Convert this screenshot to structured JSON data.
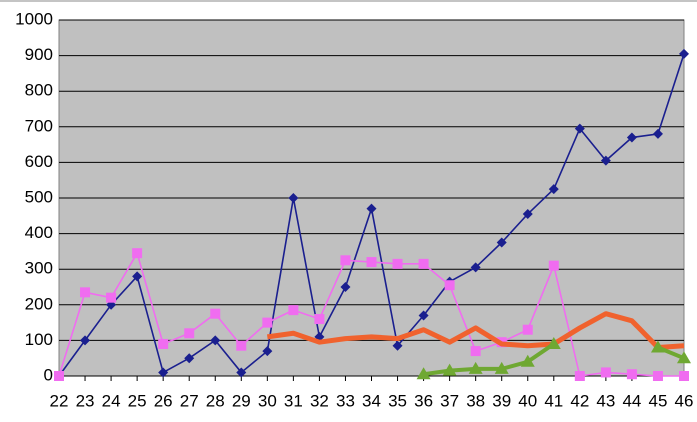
{
  "chart_data": {
    "type": "line",
    "categories": [
      "22",
      "23",
      "24",
      "25",
      "26",
      "27",
      "28",
      "29",
      "30",
      "31",
      "32",
      "33",
      "34",
      "35",
      "36",
      "37",
      "38",
      "39",
      "40",
      "41",
      "42",
      "43",
      "44",
      "45",
      "46"
    ],
    "series": [
      {
        "color": "#1a1f8f",
        "marker": "diamond",
        "values": [
          0,
          100,
          200,
          280,
          10,
          50,
          100,
          10,
          70,
          500,
          110,
          250,
          470,
          85,
          170,
          265,
          305,
          375,
          455,
          525,
          695,
          605,
          670,
          680,
          905
        ]
      },
      {
        "color": "#f06cf0",
        "marker": "square",
        "values": [
          0,
          235,
          220,
          345,
          90,
          120,
          175,
          85,
          150,
          185,
          160,
          325,
          320,
          315,
          315,
          255,
          70,
          95,
          130,
          310,
          0,
          10,
          5,
          0,
          0
        ]
      },
      {
        "color": "#f0622e",
        "marker": "none",
        "values": [
          null,
          null,
          null,
          null,
          null,
          null,
          null,
          null,
          110,
          120,
          95,
          105,
          110,
          105,
          130,
          95,
          135,
          90,
          85,
          90,
          135,
          175,
          155,
          80,
          85
        ]
      },
      {
        "color": "#6fa832",
        "marker": "triangle",
        "values": [
          null,
          null,
          null,
          null,
          null,
          null,
          null,
          null,
          null,
          null,
          null,
          null,
          null,
          null,
          5,
          15,
          20,
          20,
          40,
          90,
          null,
          null,
          null,
          80,
          50
        ]
      }
    ],
    "ylim": [
      0,
      1000
    ],
    "yticks": [
      0,
      100,
      200,
      300,
      400,
      500,
      600,
      700,
      800,
      900,
      1000
    ],
    "grid": true
  }
}
